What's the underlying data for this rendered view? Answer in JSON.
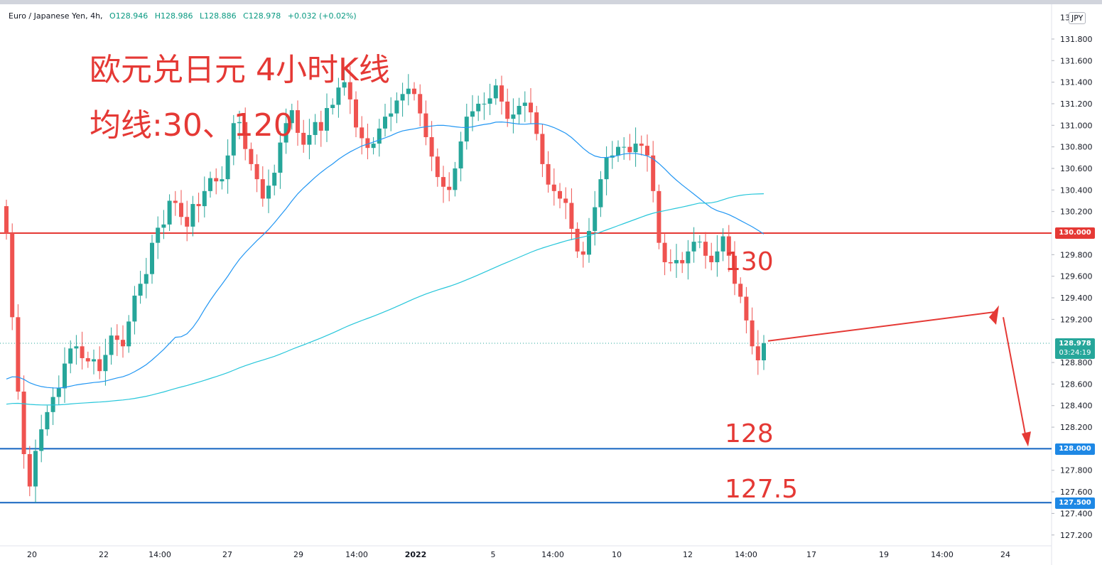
{
  "header": {
    "symbol": "Euro / Japanese Yen, 4h,",
    "open": "O128.946",
    "high": "H128.986",
    "low": "L128.886",
    "close": "C128.978",
    "change": "+0.032 (+0.02%)"
  },
  "annotations": {
    "title": "欧元兑日元 4小时K线",
    "ma_note": "均线:30、120",
    "level_130": "130",
    "level_128": "128",
    "level_1275": "127.5"
  },
  "price_axis": {
    "currency": "JPY",
    "top_partial": "13",
    "last_price": "128.978",
    "countdown": "03:24:19",
    "tag_130": "130.000",
    "tag_128": "128.000",
    "tag_1275": "127.500"
  },
  "colors": {
    "up": "#26a69a",
    "down": "#ef5350",
    "ma30": "#2196f3",
    "ma120": "#26c6da",
    "resistance": "#e53935",
    "support": "#1565c0"
  },
  "chart_data": {
    "type": "candlestick",
    "title": "Euro / Japanese Yen, 4h",
    "ylim": [
      127.1,
      132.0
    ],
    "y_ticks": [
      "131.800",
      "131.600",
      "131.400",
      "131.200",
      "131.000",
      "130.800",
      "130.600",
      "130.400",
      "130.200",
      "129.800",
      "129.600",
      "129.400",
      "129.200",
      "128.800",
      "128.600",
      "128.400",
      "128.200",
      "127.800",
      "127.600",
      "127.400",
      "127.200"
    ],
    "x_ticks": [
      "20",
      "22",
      "14:00",
      "27",
      "29",
      "14:00",
      "2022",
      "5",
      "14:00",
      "10",
      "12",
      "14:00",
      "17",
      "19",
      "14:00",
      "24"
    ],
    "horizontal_levels": [
      {
        "label": "130",
        "value": 130.0,
        "color": "red"
      },
      {
        "label": "128",
        "value": 128.0,
        "color": "blue"
      },
      {
        "label": "127.5",
        "value": 127.5,
        "color": "blue"
      }
    ],
    "closes": [
      130.0,
      129.22,
      128.53,
      127.95,
      127.65,
      127.98,
      128.18,
      128.34,
      128.48,
      128.56,
      128.79,
      128.93,
      128.95,
      128.84,
      128.81,
      128.83,
      128.72,
      128.87,
      129.05,
      129.01,
      128.95,
      129.18,
      129.42,
      129.53,
      129.62,
      129.91,
      130.05,
      130.08,
      130.3,
      130.28,
      130.15,
      130.06,
      130.27,
      130.25,
      130.39,
      130.51,
      130.48,
      130.5,
      130.72,
      131.02,
      131.03,
      130.78,
      130.64,
      130.5,
      130.32,
      130.44,
      130.56,
      130.84,
      131.02,
      131.14,
      130.93,
      130.82,
      130.91,
      131.03,
      130.95,
      131.16,
      131.19,
      131.35,
      131.4,
      131.24,
      130.98,
      130.88,
      130.79,
      130.83,
      130.97,
      131.08,
      131.11,
      131.23,
      131.29,
      131.34,
      131.29,
      131.11,
      130.89,
      130.71,
      130.52,
      130.43,
      130.4,
      130.6,
      130.85,
      131.08,
      131.13,
      131.2,
      131.2,
      131.25,
      131.37,
      131.22,
      131.06,
      131.1,
      131.18,
      131.21,
      131.12,
      130.92,
      130.64,
      130.45,
      130.39,
      130.32,
      130.28,
      130.04,
      129.83,
      129.8,
      130.02,
      130.24,
      130.5,
      130.7,
      130.72,
      130.8,
      130.8,
      130.75,
      130.83,
      130.81,
      130.72,
      130.39,
      129.91,
      129.73,
      129.72,
      129.75,
      129.72,
      129.83,
      129.92,
      129.92,
      129.79,
      129.73,
      129.83,
      129.97,
      129.79,
      129.53,
      129.41,
      129.19,
      128.95,
      128.82,
      128.98
    ],
    "moving_averages": [
      {
        "name": "MA30",
        "period": 30
      },
      {
        "name": "MA120",
        "period": 120
      }
    ],
    "projection": {
      "description": "arrow up to ~129.3 then down to ~128.0"
    }
  }
}
